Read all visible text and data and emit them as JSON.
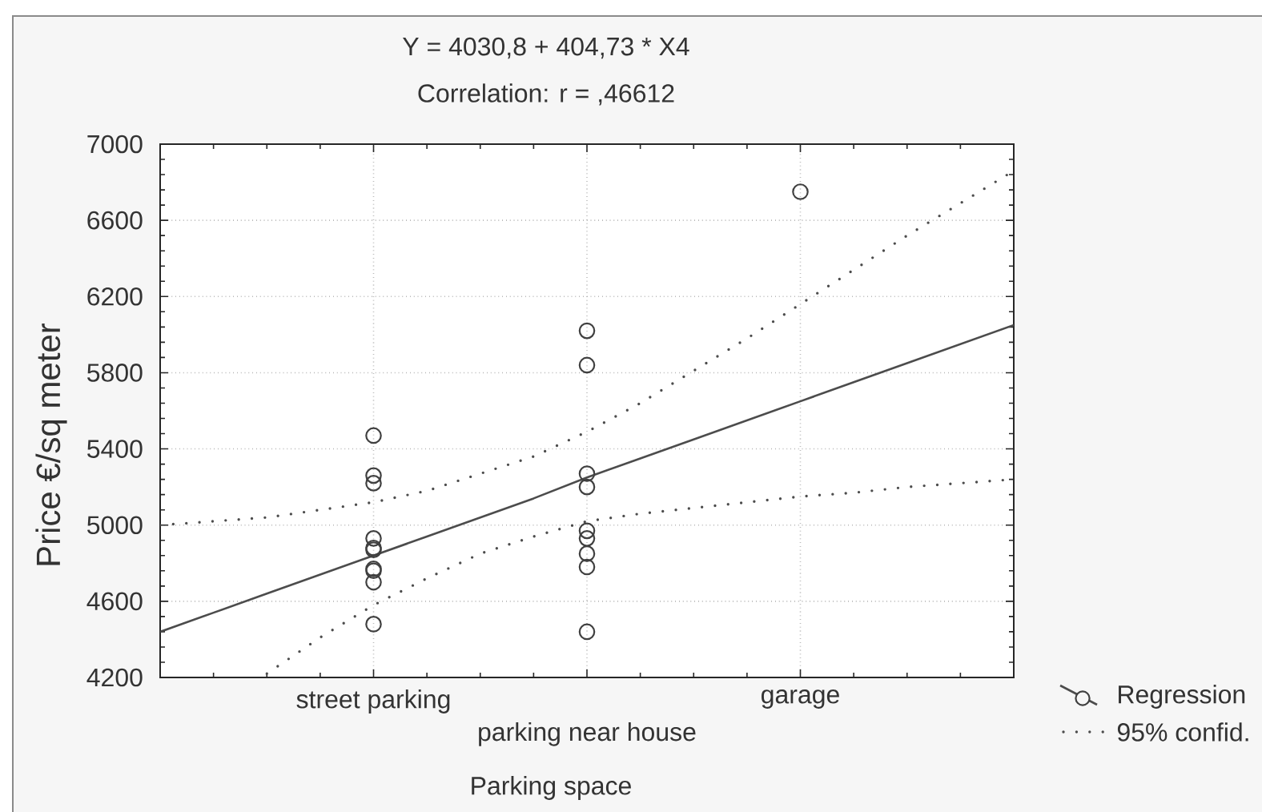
{
  "chart_data": {
    "type": "scatter",
    "title": "Y = 4030,8 + 404,73 * X4",
    "subtitle": "Correlation: r = ,46612",
    "xlabel": "Parking space",
    "ylabel": "Price €/sq meter",
    "categories": [
      null,
      null,
      null,
      null,
      "street parking",
      null,
      null,
      null,
      "parking near house",
      null,
      null,
      null,
      "garage",
      null,
      null,
      null,
      null
    ],
    "ylim": [
      4200,
      7000
    ],
    "yticks": [
      4200,
      4600,
      5000,
      5400,
      5800,
      6200,
      6600,
      7000
    ],
    "grid": true,
    "legend": "right",
    "series": [
      {
        "color": "#404040",
        "marker": "circle",
        "x": [
          "street parking",
          "street parking",
          "street parking",
          "street parking",
          "street parking",
          "street parking",
          "street parking",
          "street parking",
          "street parking",
          "street parking",
          "parking near house",
          "parking near house",
          "parking near house",
          "parking near house",
          "parking near house",
          "parking near house",
          "parking near house",
          "parking near house",
          "parking near house",
          "garage"
        ],
        "values": [
          5470,
          5260,
          5220,
          4930,
          4880,
          4870,
          4770,
          4760,
          4700,
          4480,
          6020,
          5840,
          5270,
          5200,
          4970,
          4930,
          4850,
          4780,
          4440,
          6750
        ]
      },
      {
        "name": "Regression",
        "type": "line",
        "color": "#4c4c4c",
        "line_style": "solid",
        "values": [
          4440,
          4540,
          4640,
          4740,
          4840,
          4940,
          5040,
          5140,
          5250,
          5350,
          5450,
          5550,
          5650,
          5750,
          5850,
          5950,
          6050
        ]
      },
      {
        "name": "95% confid.",
        "type": "line",
        "color": "#4c4c4c",
        "line_style": "dotted",
        "values": [
          5000,
          5020,
          5040,
          5080,
          5120,
          5180,
          5270,
          5360,
          5490,
          5640,
          5810,
          5980,
          6160,
          6340,
          6520,
          6690,
          6860
        ]
      },
      {
        "type": "line",
        "color": "#4c4c4c",
        "line_style": "dotted",
        "values": [
          null,
          null,
          4220,
          4410,
          4580,
          4720,
          4850,
          4940,
          5020,
          5060,
          5090,
          5120,
          5150,
          5170,
          5200,
          5220,
          5240
        ]
      }
    ]
  }
}
